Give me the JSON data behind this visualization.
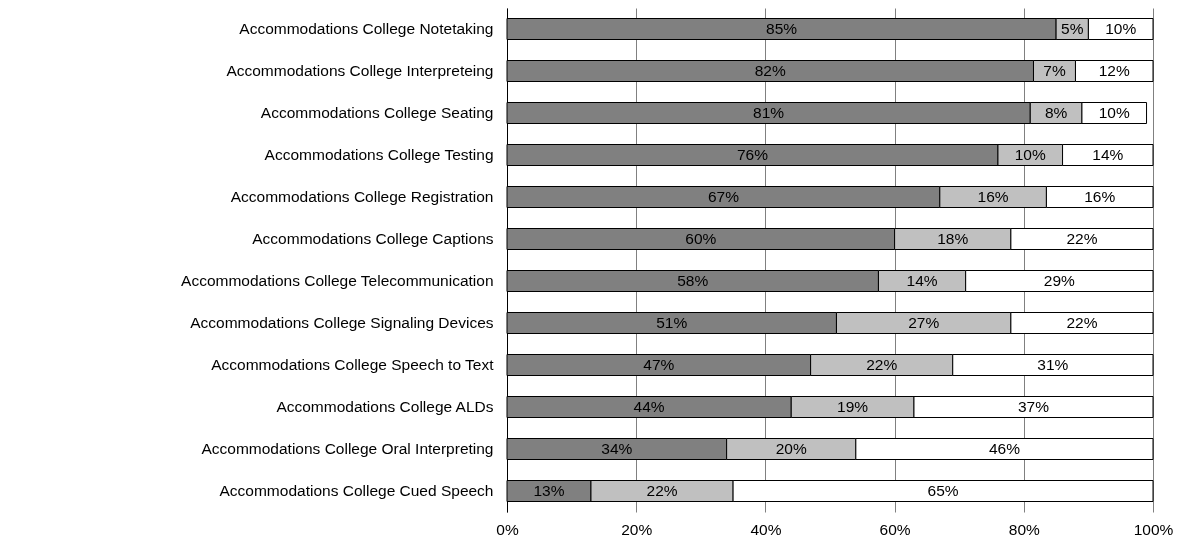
{
  "chart_data": {
    "type": "bar",
    "orientation": "horizontal",
    "stacked": true,
    "categories": [
      "Accommodations College Notetaking",
      "Accommodations College Interpreteing",
      "Accommodations College Seating",
      "Accommodations College Testing",
      "Accommodations College Registration",
      "Accommodations College Captions",
      "Accommodations College Telecommunication",
      "Accommodations College Signaling Devices",
      "Accommodations College Speech to Text",
      "Accommodations College ALDs",
      "Accommodations College Oral Interpreting",
      "Accommodations College Cued Speech"
    ],
    "series": [
      {
        "color": "#808080",
        "values": [
          85,
          81.5,
          81,
          76,
          67,
          60,
          57.5,
          51,
          47,
          44,
          34,
          13
        ],
        "value_labels": [
          "85%",
          "82%",
          "81%",
          "76%",
          "67%",
          "60%",
          "58%",
          "51%",
          "47%",
          "44%",
          "34%",
          "13%"
        ]
      },
      {
        "color": "#c0c0c0",
        "values": [
          5,
          6.5,
          8,
          10,
          16.5,
          18,
          13.5,
          27,
          22,
          19,
          20,
          22
        ],
        "value_labels": [
          "5%",
          "7%",
          "8%",
          "10%",
          "16%",
          "18%",
          "14%",
          "27%",
          "22%",
          "19%",
          "20%",
          "22%"
        ]
      },
      {
        "color": "#ffffff",
        "values": [
          10,
          12,
          10,
          14,
          16.5,
          22,
          29,
          22,
          31,
          37,
          46,
          65
        ],
        "value_labels": [
          "10%",
          "12%",
          "10%",
          "14%",
          "16%",
          "22%",
          "29%",
          "22%",
          "31%",
          "37%",
          "46%",
          "65%"
        ]
      }
    ],
    "xlim": [
      0,
      100
    ],
    "xticks": [
      {
        "value": 0,
        "label": "0%"
      },
      {
        "value": 20,
        "label": "20%"
      },
      {
        "value": 40,
        "label": "40%"
      },
      {
        "value": 60,
        "label": "60%"
      },
      {
        "value": 80,
        "label": "80%"
      },
      {
        "value": 100,
        "label": "100%"
      }
    ],
    "grid": "x"
  }
}
